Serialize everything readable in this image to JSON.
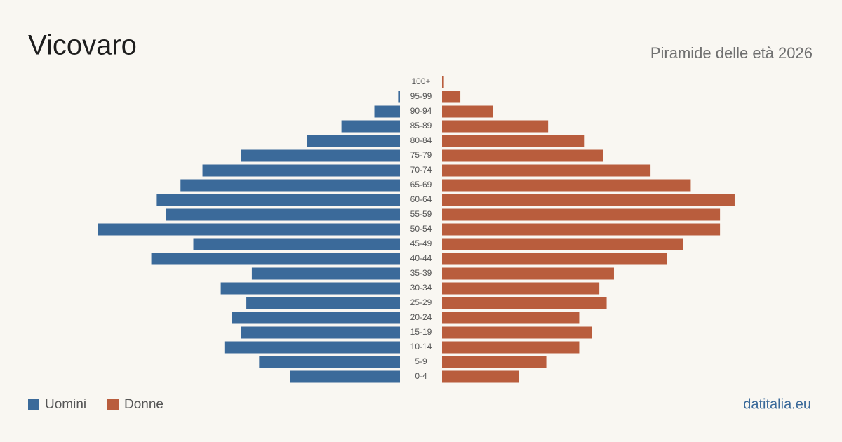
{
  "chart_data": {
    "type": "pyramid",
    "title": "Vicovaro",
    "subtitle": "Piramide delle età 2026",
    "source": "datitalia.eu",
    "categories": [
      "100+",
      "95-99",
      "90-94",
      "85-89",
      "80-84",
      "75-79",
      "70-74",
      "65-69",
      "60-64",
      "55-59",
      "50-54",
      "45-49",
      "40-44",
      "35-39",
      "30-34",
      "25-29",
      "20-24",
      "15-19",
      "10-14",
      "5-9",
      "0-4"
    ],
    "series": [
      {
        "name": "Uomini",
        "color": "#3b6a9a",
        "values": [
          0,
          1,
          14,
          32,
          51,
          87,
          108,
          120,
          133,
          128,
          165,
          113,
          136,
          81,
          98,
          84,
          92,
          87,
          96,
          77,
          60
        ]
      },
      {
        "name": "Donne",
        "color": "#b95d3d",
        "values": [
          1,
          10,
          28,
          58,
          78,
          88,
          114,
          136,
          160,
          152,
          152,
          132,
          123,
          94,
          86,
          90,
          75,
          82,
          75,
          57,
          42
        ]
      }
    ]
  }
}
